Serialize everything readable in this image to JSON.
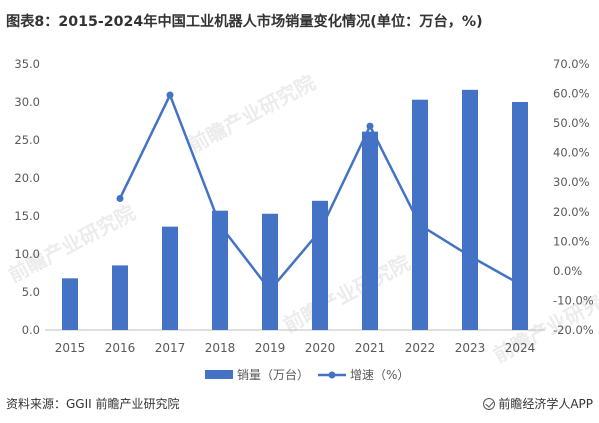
{
  "title": "图表8：2015-2024年中国工业机器人市场销量变化情况(单位：万台，%)",
  "source": "资料来源：GGII 前瞻产业研究院",
  "brand": "前瞻经济学人APP",
  "watermark": "前瞻产业研究院",
  "colors": {
    "bar": "#4472c4",
    "line": "#4472c4",
    "axis": "#bfbfbf"
  },
  "chart_data": {
    "type": "bar",
    "categories": [
      "2015",
      "2016",
      "2017",
      "2018",
      "2019",
      "2020",
      "2021",
      "2022",
      "2023",
      "2024"
    ],
    "series": [
      {
        "name": "销量（万台）",
        "type": "bar",
        "axis": "left",
        "values": [
          6.8,
          8.5,
          13.6,
          15.7,
          15.3,
          17.0,
          26.1,
          30.3,
          31.6,
          30.0
        ]
      },
      {
        "name": "增速（%）",
        "type": "line",
        "axis": "right",
        "values": [
          null,
          24.5,
          59.5,
          15.5,
          -6.5,
          13.5,
          49.0,
          15.5,
          5.0,
          -4.5
        ]
      }
    ],
    "left_axis": {
      "min": 0,
      "max": 35,
      "step": 5,
      "ticks": [
        "0.0",
        "5.0",
        "10.0",
        "15.0",
        "20.0",
        "25.0",
        "30.0",
        "35.0"
      ]
    },
    "right_axis": {
      "min": -20,
      "max": 70,
      "step": 10,
      "ticks": [
        "-20.0%",
        "-10.0%",
        "0.0%",
        "10.0%",
        "20.0%",
        "30.0%",
        "40.0%",
        "50.0%",
        "60.0%",
        "70.0%"
      ]
    },
    "legend_position": "bottom",
    "grid": false
  }
}
